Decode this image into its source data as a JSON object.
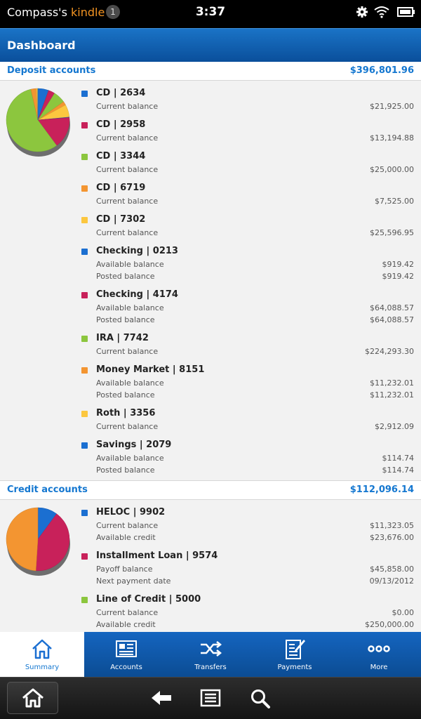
{
  "status_bar": {
    "device_prefix": "Compass's ",
    "device_brand": "kindle",
    "notification_count": "1",
    "time": "3:37"
  },
  "header": {
    "title": "Dashboard"
  },
  "deposit": {
    "title": "Deposit accounts",
    "total": "$396,801.96",
    "accounts": [
      {
        "name": "CD | 2634",
        "color": "#1b6fd1",
        "rows": [
          {
            "label": "Current balance",
            "value": "$21,925.00"
          }
        ]
      },
      {
        "name": "CD | 2958",
        "color": "#c8215a",
        "rows": [
          {
            "label": "Current balance",
            "value": "$13,194.88"
          }
        ]
      },
      {
        "name": "CD | 3344",
        "color": "#8cc63e",
        "rows": [
          {
            "label": "Current balance",
            "value": "$25,000.00"
          }
        ]
      },
      {
        "name": "CD | 6719",
        "color": "#f39531",
        "rows": [
          {
            "label": "Current balance",
            "value": "$7,525.00"
          }
        ]
      },
      {
        "name": "CD | 7302",
        "color": "#fcc73f",
        "rows": [
          {
            "label": "Current balance",
            "value": "$25,596.95"
          }
        ]
      },
      {
        "name": "Checking | 0213",
        "color": "#1b6fd1",
        "rows": [
          {
            "label": "Available balance",
            "value": "$919.42"
          },
          {
            "label": "Posted balance",
            "value": "$919.42"
          }
        ]
      },
      {
        "name": "Checking | 4174",
        "color": "#c8215a",
        "rows": [
          {
            "label": "Available balance",
            "value": "$64,088.57"
          },
          {
            "label": "Posted balance",
            "value": "$64,088.57"
          }
        ]
      },
      {
        "name": "IRA | 7742",
        "color": "#8cc63e",
        "rows": [
          {
            "label": "Current balance",
            "value": "$224,293.30"
          }
        ]
      },
      {
        "name": "Money Market | 8151",
        "color": "#f39531",
        "rows": [
          {
            "label": "Available balance",
            "value": "$11,232.01"
          },
          {
            "label": "Posted balance",
            "value": "$11,232.01"
          }
        ]
      },
      {
        "name": "Roth | 3356",
        "color": "#fcc73f",
        "rows": [
          {
            "label": "Current balance",
            "value": "$2,912.09"
          }
        ]
      },
      {
        "name": "Savings | 2079",
        "color": "#1b6fd1",
        "rows": [
          {
            "label": "Available balance",
            "value": "$114.74"
          },
          {
            "label": "Posted balance",
            "value": "$114.74"
          }
        ]
      }
    ]
  },
  "credit": {
    "title": "Credit accounts",
    "total": "$112,096.14",
    "accounts": [
      {
        "name": "HELOC | 9902",
        "color": "#1b6fd1",
        "rows": [
          {
            "label": "Current balance",
            "value": "$11,323.05"
          },
          {
            "label": "Available credit",
            "value": "$23,676.00"
          }
        ]
      },
      {
        "name": "Installment Loan | 9574",
        "color": "#c8215a",
        "rows": [
          {
            "label": "Payoff balance",
            "value": "$45,858.00"
          },
          {
            "label": "Next payment date",
            "value": "09/13/2012"
          }
        ]
      },
      {
        "name": "Line of Credit | 5000",
        "color": "#8cc63e",
        "rows": [
          {
            "label": "Current balance",
            "value": "$0.00"
          },
          {
            "label": "Available credit",
            "value": "$250,000.00"
          }
        ]
      }
    ]
  },
  "pies": {
    "deposit": [
      {
        "value": 21925.0,
        "color": "#1b6fd1"
      },
      {
        "value": 13194.88,
        "color": "#c8215a"
      },
      {
        "value": 25000.0,
        "color": "#8cc63e"
      },
      {
        "value": 7525.0,
        "color": "#f39531"
      },
      {
        "value": 25596.95,
        "color": "#fcc73f"
      },
      {
        "value": 919.42,
        "color": "#1b6fd1"
      },
      {
        "value": 64088.57,
        "color": "#c8215a"
      },
      {
        "value": 224293.3,
        "color": "#8cc63e"
      },
      {
        "value": 11232.01,
        "color": "#f39531"
      },
      {
        "value": 2912.09,
        "color": "#fcc73f"
      },
      {
        "value": 114.74,
        "color": "#1b6fd1"
      }
    ],
    "credit": [
      {
        "value": 11323.05,
        "color": "#1b6fd1"
      },
      {
        "value": 45858.0,
        "color": "#c8215a"
      },
      {
        "value": 54915.09,
        "color": "#f39531"
      }
    ]
  },
  "tabs": [
    {
      "label": "Summary",
      "icon": "home-icon",
      "active": true
    },
    {
      "label": "Accounts",
      "icon": "accounts-icon",
      "active": false
    },
    {
      "label": "Transfers",
      "icon": "transfers-icon",
      "active": false
    },
    {
      "label": "Payments",
      "icon": "payments-icon",
      "active": false
    },
    {
      "label": "More",
      "icon": "more-icon",
      "active": false
    }
  ],
  "system_nav": [
    "home-icon",
    "back-icon",
    "menu-icon",
    "search-icon"
  ]
}
